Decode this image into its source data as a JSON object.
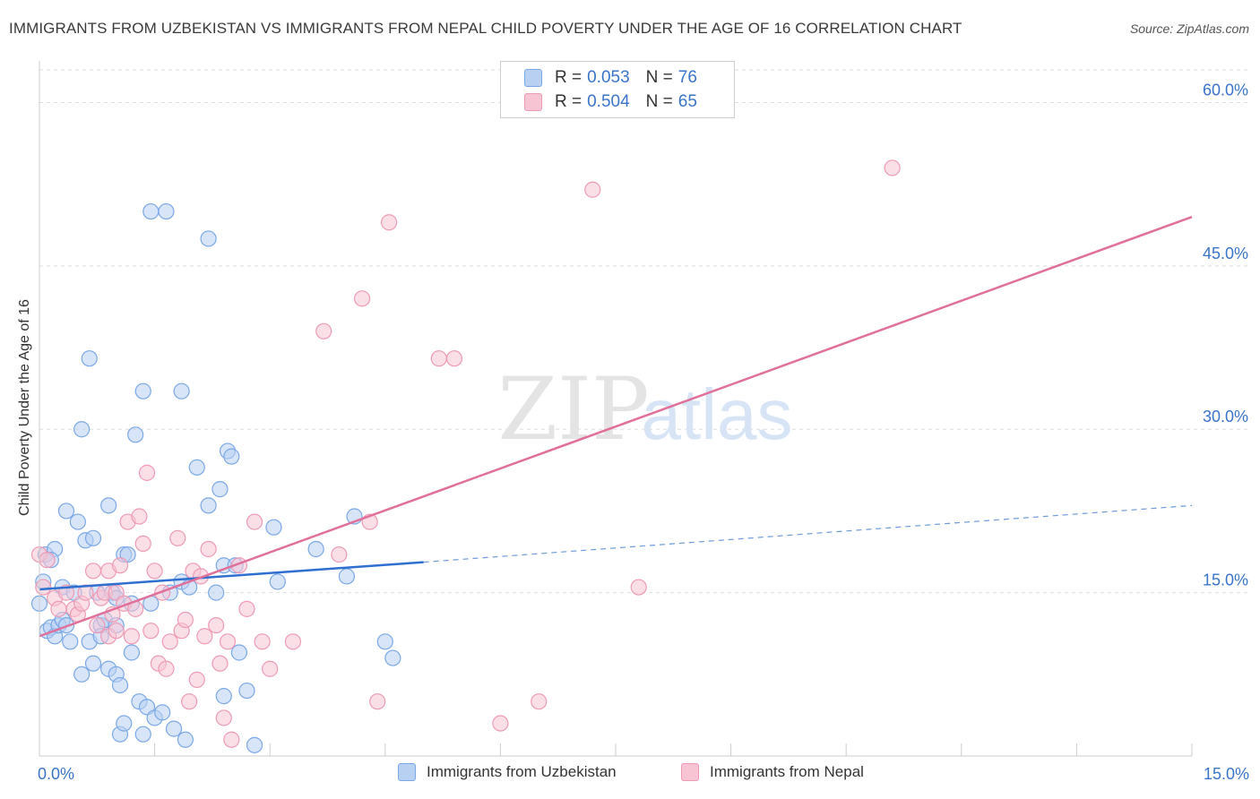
{
  "title": "IMMIGRANTS FROM UZBEKISTAN VS IMMIGRANTS FROM NEPAL CHILD POVERTY UNDER THE AGE OF 16 CORRELATION CHART",
  "source": "Source: ZipAtlas.com",
  "watermark": {
    "zip": "ZIP",
    "atlas": "atlas"
  },
  "legend_top": [
    {
      "r_label": "R =",
      "r_value": "0.053",
      "n_label": "N =",
      "n_value": "76"
    },
    {
      "r_label": "R =",
      "r_value": "0.504",
      "n_label": "N =",
      "n_value": "65"
    }
  ],
  "chart_data": {
    "type": "scatter",
    "title": "IMMIGRANTS FROM UZBEKISTAN VS IMMIGRANTS FROM NEPAL CHILD POVERTY UNDER THE AGE OF 16 CORRELATION CHART",
    "xlabel": "",
    "ylabel": "Child Poverty Under the Age of 16",
    "xlim": [
      0,
      15
    ],
    "ylim": [
      0,
      63
    ],
    "x_tick_labels": [
      "0.0%",
      "15.0%"
    ],
    "y_ticks": [
      15,
      30,
      45,
      60
    ],
    "y_tick_labels": [
      "15.0%",
      "30.0%",
      "45.0%",
      "60.0%"
    ],
    "grid": true,
    "legend_position": "bottom",
    "series": [
      {
        "name": "Immigrants from Uzbekistan",
        "color": "#7aa8e6",
        "fill": "#b8d0f2",
        "trend": {
          "x": [
            0,
            5
          ],
          "y": [
            15.3,
            17.8
          ],
          "solid_until": 5,
          "dashed_x": [
            5,
            15
          ],
          "dashed_y": [
            17.8,
            23.0
          ]
        },
        "points": [
          [
            0.0,
            14.0
          ],
          [
            0.05,
            16.0
          ],
          [
            0.08,
            18.5
          ],
          [
            0.1,
            11.5
          ],
          [
            0.15,
            11.8
          ],
          [
            0.2,
            11.0
          ],
          [
            0.25,
            12.0
          ],
          [
            0.3,
            12.5
          ],
          [
            0.3,
            15.5
          ],
          [
            0.35,
            12.0
          ],
          [
            0.35,
            22.5
          ],
          [
            0.4,
            10.5
          ],
          [
            0.45,
            15.0
          ],
          [
            0.5,
            21.5
          ],
          [
            0.55,
            7.5
          ],
          [
            0.55,
            30.0
          ],
          [
            0.6,
            19.8
          ],
          [
            0.65,
            36.5
          ],
          [
            0.65,
            10.5
          ],
          [
            0.7,
            20.0
          ],
          [
            0.7,
            8.5
          ],
          [
            0.75,
            15.0
          ],
          [
            0.8,
            12.0
          ],
          [
            0.8,
            11.0
          ],
          [
            0.85,
            12.5
          ],
          [
            0.9,
            8.0
          ],
          [
            0.9,
            23.0
          ],
          [
            0.95,
            15.0
          ],
          [
            1.0,
            14.5
          ],
          [
            1.0,
            12.0
          ],
          [
            1.0,
            7.5
          ],
          [
            1.05,
            6.5
          ],
          [
            1.05,
            2.0
          ],
          [
            1.1,
            3.0
          ],
          [
            1.1,
            18.5
          ],
          [
            1.15,
            18.5
          ],
          [
            1.2,
            14.0
          ],
          [
            1.2,
            9.5
          ],
          [
            1.25,
            29.5
          ],
          [
            1.3,
            5.0
          ],
          [
            1.35,
            2.0
          ],
          [
            1.35,
            33.5
          ],
          [
            1.4,
            4.5
          ],
          [
            1.45,
            50.0
          ],
          [
            1.45,
            14.0
          ],
          [
            1.5,
            3.5
          ],
          [
            1.6,
            4.0
          ],
          [
            1.65,
            50.0
          ],
          [
            1.7,
            15.0
          ],
          [
            1.75,
            2.5
          ],
          [
            1.85,
            33.5
          ],
          [
            1.85,
            16.0
          ],
          [
            1.9,
            1.5
          ],
          [
            1.95,
            15.5
          ],
          [
            2.05,
            26.5
          ],
          [
            2.2,
            47.5
          ],
          [
            2.2,
            23.0
          ],
          [
            2.3,
            15.0
          ],
          [
            2.35,
            24.5
          ],
          [
            2.4,
            17.5
          ],
          [
            2.4,
            5.5
          ],
          [
            2.45,
            28.0
          ],
          [
            2.5,
            27.5
          ],
          [
            2.55,
            17.5
          ],
          [
            2.6,
            9.5
          ],
          [
            2.7,
            6.0
          ],
          [
            2.8,
            1.0
          ],
          [
            3.05,
            21.0
          ],
          [
            3.1,
            16.0
          ],
          [
            3.6,
            19.0
          ],
          [
            4.0,
            16.5
          ],
          [
            4.1,
            22.0
          ],
          [
            4.5,
            10.5
          ],
          [
            4.6,
            9.0
          ],
          [
            0.2,
            19.0
          ],
          [
            0.15,
            18.0
          ]
        ]
      },
      {
        "name": "Immigrants from Nepal",
        "color": "#ee9ab5",
        "fill": "#f7c4d4",
        "trend": {
          "x": [
            0,
            15
          ],
          "y": [
            11.0,
            49.5
          ]
        },
        "points": [
          [
            0.0,
            18.5
          ],
          [
            0.05,
            15.5
          ],
          [
            0.1,
            18.0
          ],
          [
            0.2,
            14.5
          ],
          [
            0.25,
            13.5
          ],
          [
            0.35,
            15.0
          ],
          [
            0.45,
            13.5
          ],
          [
            0.5,
            13.0
          ],
          [
            0.55,
            14.0
          ],
          [
            0.6,
            15.0
          ],
          [
            0.7,
            17.0
          ],
          [
            0.75,
            12.0
          ],
          [
            0.8,
            14.5
          ],
          [
            0.85,
            15.0
          ],
          [
            0.9,
            11.0
          ],
          [
            0.9,
            17.0
          ],
          [
            0.95,
            13.0
          ],
          [
            1.0,
            11.5
          ],
          [
            1.0,
            15.0
          ],
          [
            1.05,
            17.5
          ],
          [
            1.1,
            14.0
          ],
          [
            1.15,
            21.5
          ],
          [
            1.2,
            11.0
          ],
          [
            1.25,
            13.5
          ],
          [
            1.3,
            22.0
          ],
          [
            1.35,
            19.5
          ],
          [
            1.4,
            26.0
          ],
          [
            1.45,
            11.5
          ],
          [
            1.5,
            17.0
          ],
          [
            1.55,
            8.5
          ],
          [
            1.6,
            15.0
          ],
          [
            1.65,
            8.0
          ],
          [
            1.7,
            10.5
          ],
          [
            1.8,
            20.0
          ],
          [
            1.85,
            11.5
          ],
          [
            1.9,
            12.5
          ],
          [
            1.95,
            5.0
          ],
          [
            2.0,
            17.0
          ],
          [
            2.05,
            7.0
          ],
          [
            2.1,
            16.5
          ],
          [
            2.15,
            11.0
          ],
          [
            2.2,
            19.0
          ],
          [
            2.3,
            12.0
          ],
          [
            2.35,
            8.5
          ],
          [
            2.4,
            3.5
          ],
          [
            2.45,
            10.5
          ],
          [
            2.5,
            1.5
          ],
          [
            2.6,
            17.5
          ],
          [
            2.7,
            13.5
          ],
          [
            2.8,
            21.5
          ],
          [
            2.9,
            10.5
          ],
          [
            3.0,
            8.0
          ],
          [
            3.3,
            10.5
          ],
          [
            3.7,
            39.0
          ],
          [
            3.9,
            18.5
          ],
          [
            4.2,
            42.0
          ],
          [
            4.3,
            21.5
          ],
          [
            4.4,
            5.0
          ],
          [
            4.55,
            49.0
          ],
          [
            5.2,
            36.5
          ],
          [
            5.4,
            36.5
          ],
          [
            6.0,
            3.0
          ],
          [
            6.5,
            5.0
          ],
          [
            7.2,
            52.0
          ],
          [
            7.8,
            15.5
          ]
        ]
      }
    ],
    "extra_points_nepal": [
      [
        11.1,
        54.0
      ]
    ]
  }
}
